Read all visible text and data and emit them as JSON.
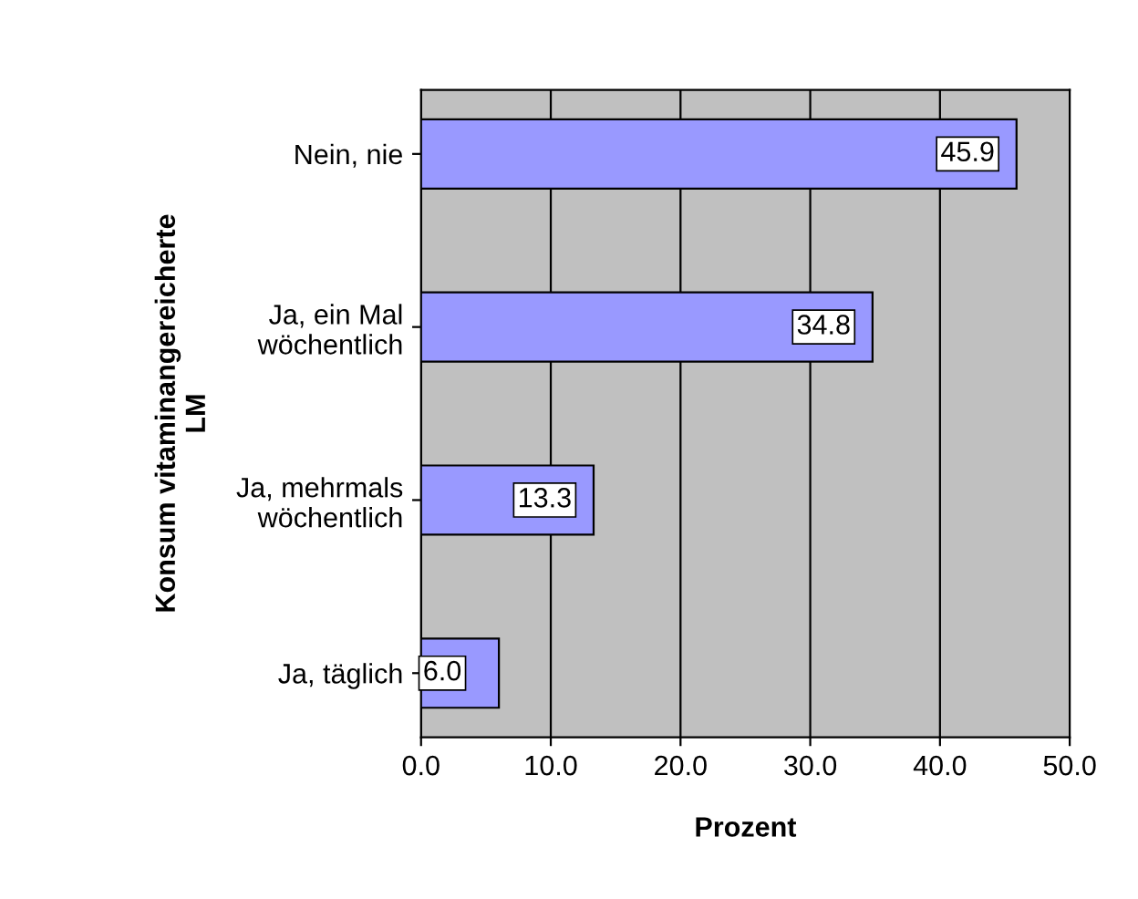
{
  "chart_data": {
    "type": "bar",
    "orientation": "horizontal",
    "categories": [
      "Nein, nie",
      "Ja, ein Mal\nwöchentlich",
      "Ja, mehrmals\nwöchentlich",
      "Ja, täglich"
    ],
    "values": [
      45.9,
      34.8,
      13.3,
      6.0
    ],
    "value_labels": [
      "45.9",
      "34.8",
      "13.3",
      "6.0"
    ],
    "color": "#9999ff",
    "xlim": [
      0,
      50
    ],
    "xticks": [
      {
        "value": 0,
        "label": "0.0"
      },
      {
        "value": 10,
        "label": "10.0"
      },
      {
        "value": 20,
        "label": "20.0"
      },
      {
        "value": 30,
        "label": "30.0"
      },
      {
        "value": 40,
        "label": "40.0"
      },
      {
        "value": 50,
        "label": "50.0"
      }
    ],
    "xlabel": "Prozent",
    "ylabel": "Konsum vitaminangereicherte\nLM",
    "grid": "x"
  }
}
